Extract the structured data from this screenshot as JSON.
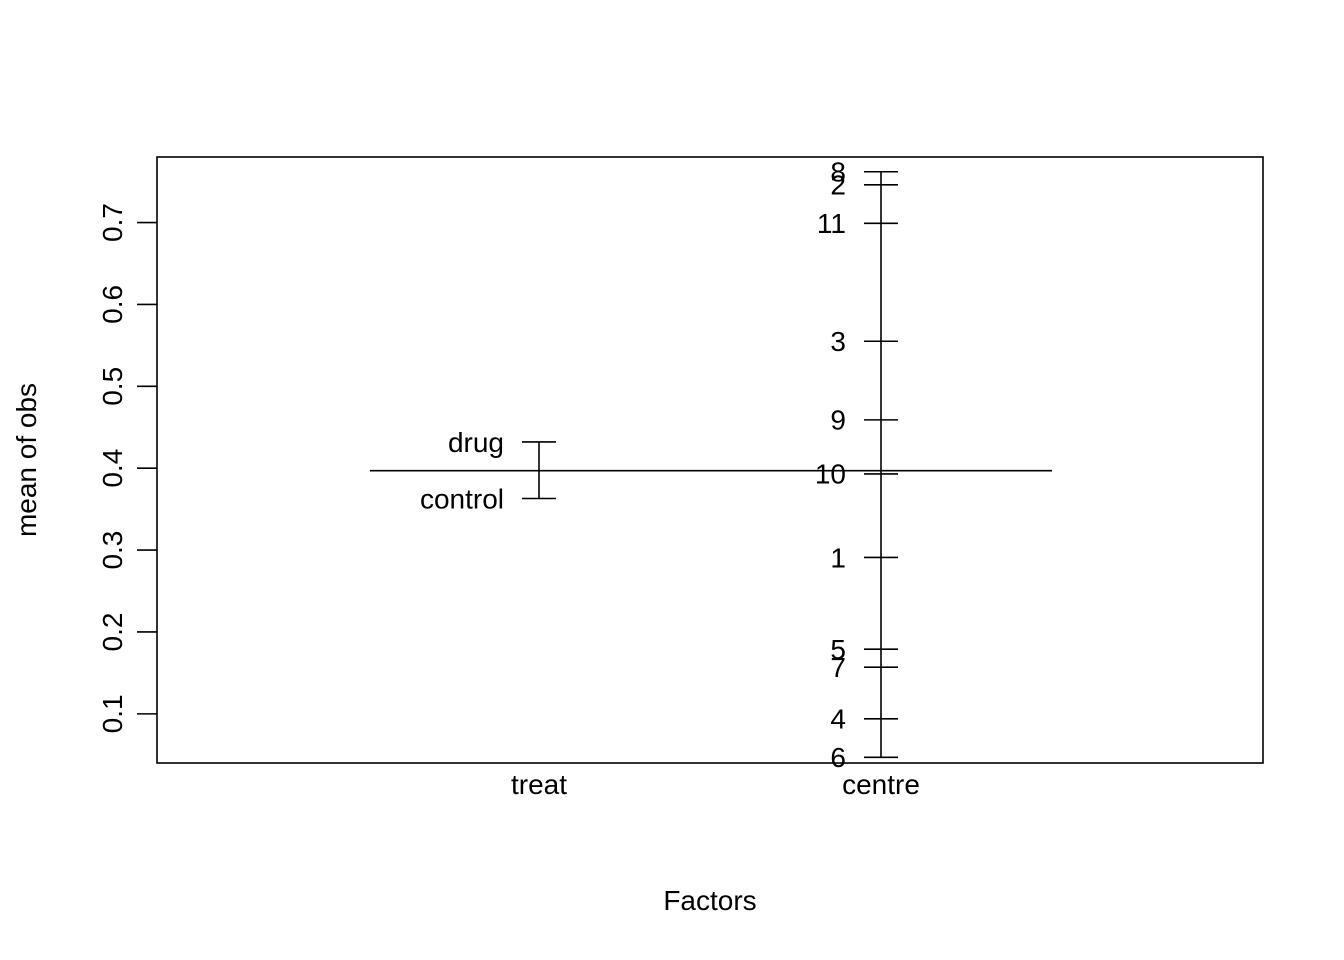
{
  "chart_data": {
    "type": "plot.design",
    "xlabel": "Factors",
    "ylabel": "mean of obs",
    "ylim": [
      0.04,
      0.78
    ],
    "y_ticks": [
      "0.1",
      "0.2",
      "0.3",
      "0.4",
      "0.5",
      "0.6",
      "0.7"
    ],
    "grand_mean": 0.397,
    "factors": [
      {
        "name": "treat",
        "levels": [
          {
            "label": "drug",
            "value": 0.432
          },
          {
            "label": "control",
            "value": 0.363
          }
        ]
      },
      {
        "name": "centre",
        "levels": [
          {
            "label": "8",
            "value": 0.762
          },
          {
            "label": "2",
            "value": 0.746
          },
          {
            "label": "11",
            "value": 0.699
          },
          {
            "label": "3",
            "value": 0.555
          },
          {
            "label": "9",
            "value": 0.459
          },
          {
            "label": "10",
            "value": 0.393
          },
          {
            "label": "1",
            "value": 0.291
          },
          {
            "label": "5",
            "value": 0.179
          },
          {
            "label": "7",
            "value": 0.157
          },
          {
            "label": "4",
            "value": 0.094
          },
          {
            "label": "6",
            "value": 0.047
          }
        ]
      }
    ]
  }
}
